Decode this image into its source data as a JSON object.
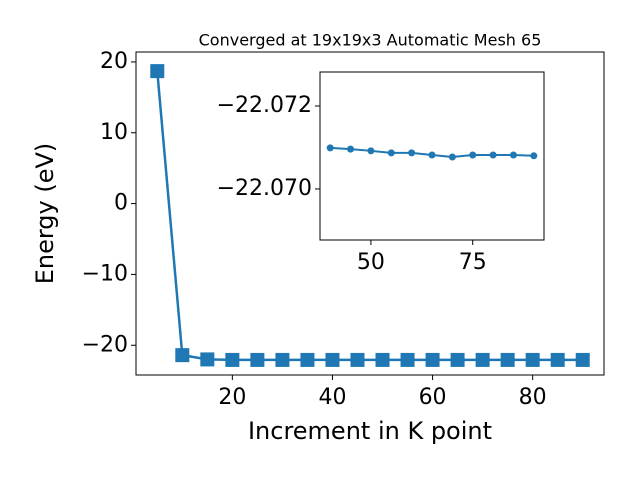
{
  "chart_data": [
    {
      "type": "line",
      "title": "Converged at 19x19x3 Automatic Mesh 65",
      "x_label": "Increment in K point",
      "y_label": "Energy (eV)",
      "x": [
        5,
        10,
        15,
        20,
        25,
        30,
        35,
        40,
        45,
        50,
        55,
        60,
        65,
        70,
        75,
        80,
        85,
        90
      ],
      "series": [
        {
          "color": "#1f77b4",
          "marker": "square",
          "values": [
            18.7,
            -21.4,
            -22.0,
            -22.071,
            -22.071,
            -22.071,
            -22.071,
            -22.07099,
            -22.07096,
            -22.07092,
            -22.07087,
            -22.07087,
            -22.07082,
            -22.07077,
            -22.07082,
            -22.07082,
            -22.07082,
            -22.0708
          ]
        }
      ],
      "xlim": [
        0.75,
        94.25
      ],
      "ylim": [
        -24.2,
        21.4
      ],
      "xticks": [
        20,
        40,
        60,
        80
      ],
      "yticks": [
        {
          "value": -20,
          "label": "−20"
        },
        {
          "value": -10,
          "label": "−10"
        },
        0,
        10,
        20
      ],
      "grid": false
    },
    {
      "type": "line",
      "x": [
        40,
        45,
        50,
        55,
        60,
        65,
        70,
        75,
        80,
        85,
        90
      ],
      "series": [
        {
          "color": "#1f77b4",
          "marker": "circle",
          "values": [
            -22.07099,
            -22.07096,
            -22.07092,
            -22.07087,
            -22.07087,
            -22.07082,
            -22.07077,
            -22.07082,
            -22.07082,
            -22.07082,
            -22.0708
          ]
        }
      ],
      "xlim": [
        37.5,
        92.5
      ],
      "ylim": [
        -22.06877,
        -22.07282
      ],
      "xticks": [
        50,
        75
      ],
      "yticks": [
        {
          "value": -22.07,
          "label": "−22.070"
        },
        {
          "value": -22.072,
          "label": "−22.072"
        }
      ],
      "grid": false
    }
  ]
}
